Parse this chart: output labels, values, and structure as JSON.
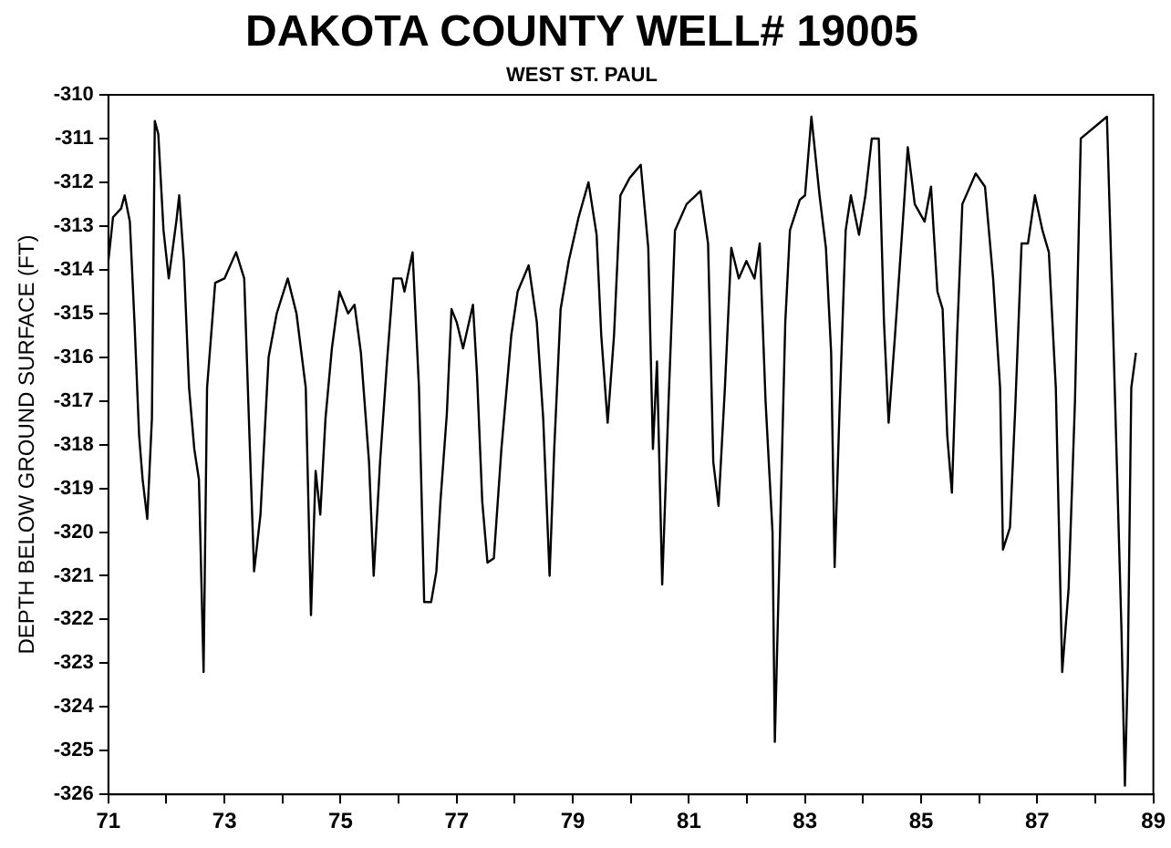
{
  "chart_data": {
    "type": "line",
    "title": "DAKOTA COUNTY WELL# 19005",
    "subtitle": "WEST ST. PAUL",
    "ylabel": "DEPTH BELOW GROUND SURFACE (FT)",
    "xlim": [
      71,
      89
    ],
    "ylim": [
      -326,
      -310
    ],
    "xticks": [
      71,
      {
        "value": 72,
        "label": null
      },
      73,
      {
        "value": 74,
        "label": null
      },
      75,
      {
        "value": 76,
        "label": null
      },
      77,
      {
        "value": 78,
        "label": null
      },
      79,
      {
        "value": 80,
        "label": null
      },
      81,
      {
        "value": 82,
        "label": null
      },
      83,
      {
        "value": 84,
        "label": null
      },
      85,
      {
        "value": 86,
        "label": null
      },
      87,
      {
        "value": 88,
        "label": null
      },
      89
    ],
    "yticks": [
      -326,
      -325,
      -324,
      -323,
      -322,
      -321,
      -320,
      -319,
      -318,
      -317,
      -316,
      -315,
      -314,
      -313,
      -312,
      -311,
      -310
    ],
    "grid": false,
    "legend": false,
    "marker": "none",
    "line_style": "solid",
    "series": [
      {
        "color": "#000000",
        "x": [
          71.0,
          71.08,
          71.22,
          71.28,
          71.37,
          71.45,
          71.53,
          71.59,
          71.67,
          71.75,
          71.8,
          71.86,
          71.95,
          72.04,
          72.17,
          72.22,
          72.3,
          72.39,
          72.48,
          72.56,
          72.64,
          72.7,
          72.84,
          73.0,
          73.2,
          73.34,
          73.42,
          73.51,
          73.62,
          73.76,
          73.9,
          74.09,
          74.24,
          74.4,
          74.49,
          74.57,
          74.65,
          74.74,
          74.85,
          74.98,
          75.13,
          75.24,
          75.35,
          75.49,
          75.57,
          75.68,
          75.8,
          75.91,
          76.05,
          76.1,
          76.24,
          76.35,
          76.44,
          76.56,
          76.65,
          76.72,
          76.83,
          76.91,
          77.0,
          77.11,
          77.28,
          77.35,
          77.44,
          77.53,
          77.64,
          77.77,
          77.94,
          78.05,
          78.24,
          78.38,
          78.49,
          78.6,
          78.68,
          78.79,
          78.93,
          79.1,
          79.27,
          79.41,
          79.49,
          79.6,
          79.71,
          79.82,
          79.98,
          80.17,
          80.3,
          80.38,
          80.45,
          80.54,
          80.65,
          80.76,
          80.96,
          81.2,
          81.33,
          81.42,
          81.51,
          81.62,
          81.73,
          81.86,
          81.99,
          82.13,
          82.22,
          82.32,
          82.44,
          82.48,
          82.57,
          82.66,
          82.74,
          82.91,
          83.0,
          83.11,
          83.25,
          83.36,
          83.45,
          83.51,
          83.59,
          83.7,
          83.79,
          83.93,
          84.04,
          84.15,
          84.27,
          84.36,
          84.44,
          84.55,
          84.69,
          84.77,
          84.89,
          85.06,
          85.17,
          85.28,
          85.37,
          85.45,
          85.53,
          85.62,
          85.71,
          85.94,
          86.1,
          86.24,
          86.36,
          86.41,
          86.53,
          86.62,
          86.73,
          86.84,
          86.96,
          87.09,
          87.2,
          87.32,
          87.43,
          87.54,
          87.65,
          87.75,
          88.2,
          88.28,
          88.45,
          88.51,
          88.56,
          88.62,
          88.7
        ],
        "values": [
          -313.8,
          -312.8,
          -312.6,
          -312.3,
          -312.9,
          -315.2,
          -317.8,
          -318.8,
          -319.7,
          -317.4,
          -310.6,
          -310.9,
          -313.1,
          -314.2,
          -312.9,
          -312.3,
          -313.8,
          -316.7,
          -318.1,
          -318.8,
          -323.2,
          -316.7,
          -314.3,
          -314.2,
          -313.6,
          -314.2,
          -317.4,
          -320.9,
          -319.6,
          -316.0,
          -315.0,
          -314.2,
          -315.0,
          -316.7,
          -321.9,
          -318.6,
          -319.6,
          -317.4,
          -315.8,
          -314.5,
          -315.0,
          -314.8,
          -315.9,
          -318.4,
          -321.0,
          -318.4,
          -316.1,
          -314.2,
          -314.2,
          -314.5,
          -313.6,
          -316.7,
          -321.6,
          -321.6,
          -320.9,
          -319.3,
          -317.3,
          -314.9,
          -315.2,
          -315.8,
          -314.8,
          -316.4,
          -319.3,
          -320.7,
          -320.6,
          -318.1,
          -315.5,
          -314.5,
          -313.9,
          -315.2,
          -317.4,
          -321.0,
          -318.1,
          -314.9,
          -313.8,
          -312.8,
          -312.0,
          -313.2,
          -315.5,
          -317.5,
          -315.5,
          -312.3,
          -311.9,
          -311.6,
          -313.5,
          -318.1,
          -316.1,
          -321.2,
          -317.0,
          -313.1,
          -312.5,
          -312.2,
          -313.4,
          -318.4,
          -319.4,
          -316.7,
          -313.5,
          -314.2,
          -313.8,
          -314.2,
          -313.4,
          -317.0,
          -320.0,
          -324.8,
          -320.0,
          -315.2,
          -313.1,
          -312.4,
          -312.3,
          -310.5,
          -312.3,
          -313.5,
          -315.9,
          -320.8,
          -317.4,
          -313.1,
          -312.3,
          -313.2,
          -312.3,
          -311.0,
          -311.0,
          -315.2,
          -317.5,
          -315.5,
          -312.8,
          -311.2,
          -312.5,
          -312.9,
          -312.1,
          -314.5,
          -314.9,
          -317.8,
          -319.1,
          -315.5,
          -312.5,
          -311.8,
          -312.1,
          -314.2,
          -316.7,
          -320.4,
          -319.9,
          -317.2,
          -313.4,
          -313.4,
          -312.3,
          -313.1,
          -313.6,
          -316.7,
          -323.2,
          -321.3,
          -317.0,
          -311.0,
          -310.5,
          -314.1,
          -322.2,
          -325.8,
          -323.1,
          -316.7,
          -315.9
        ]
      }
    ]
  }
}
